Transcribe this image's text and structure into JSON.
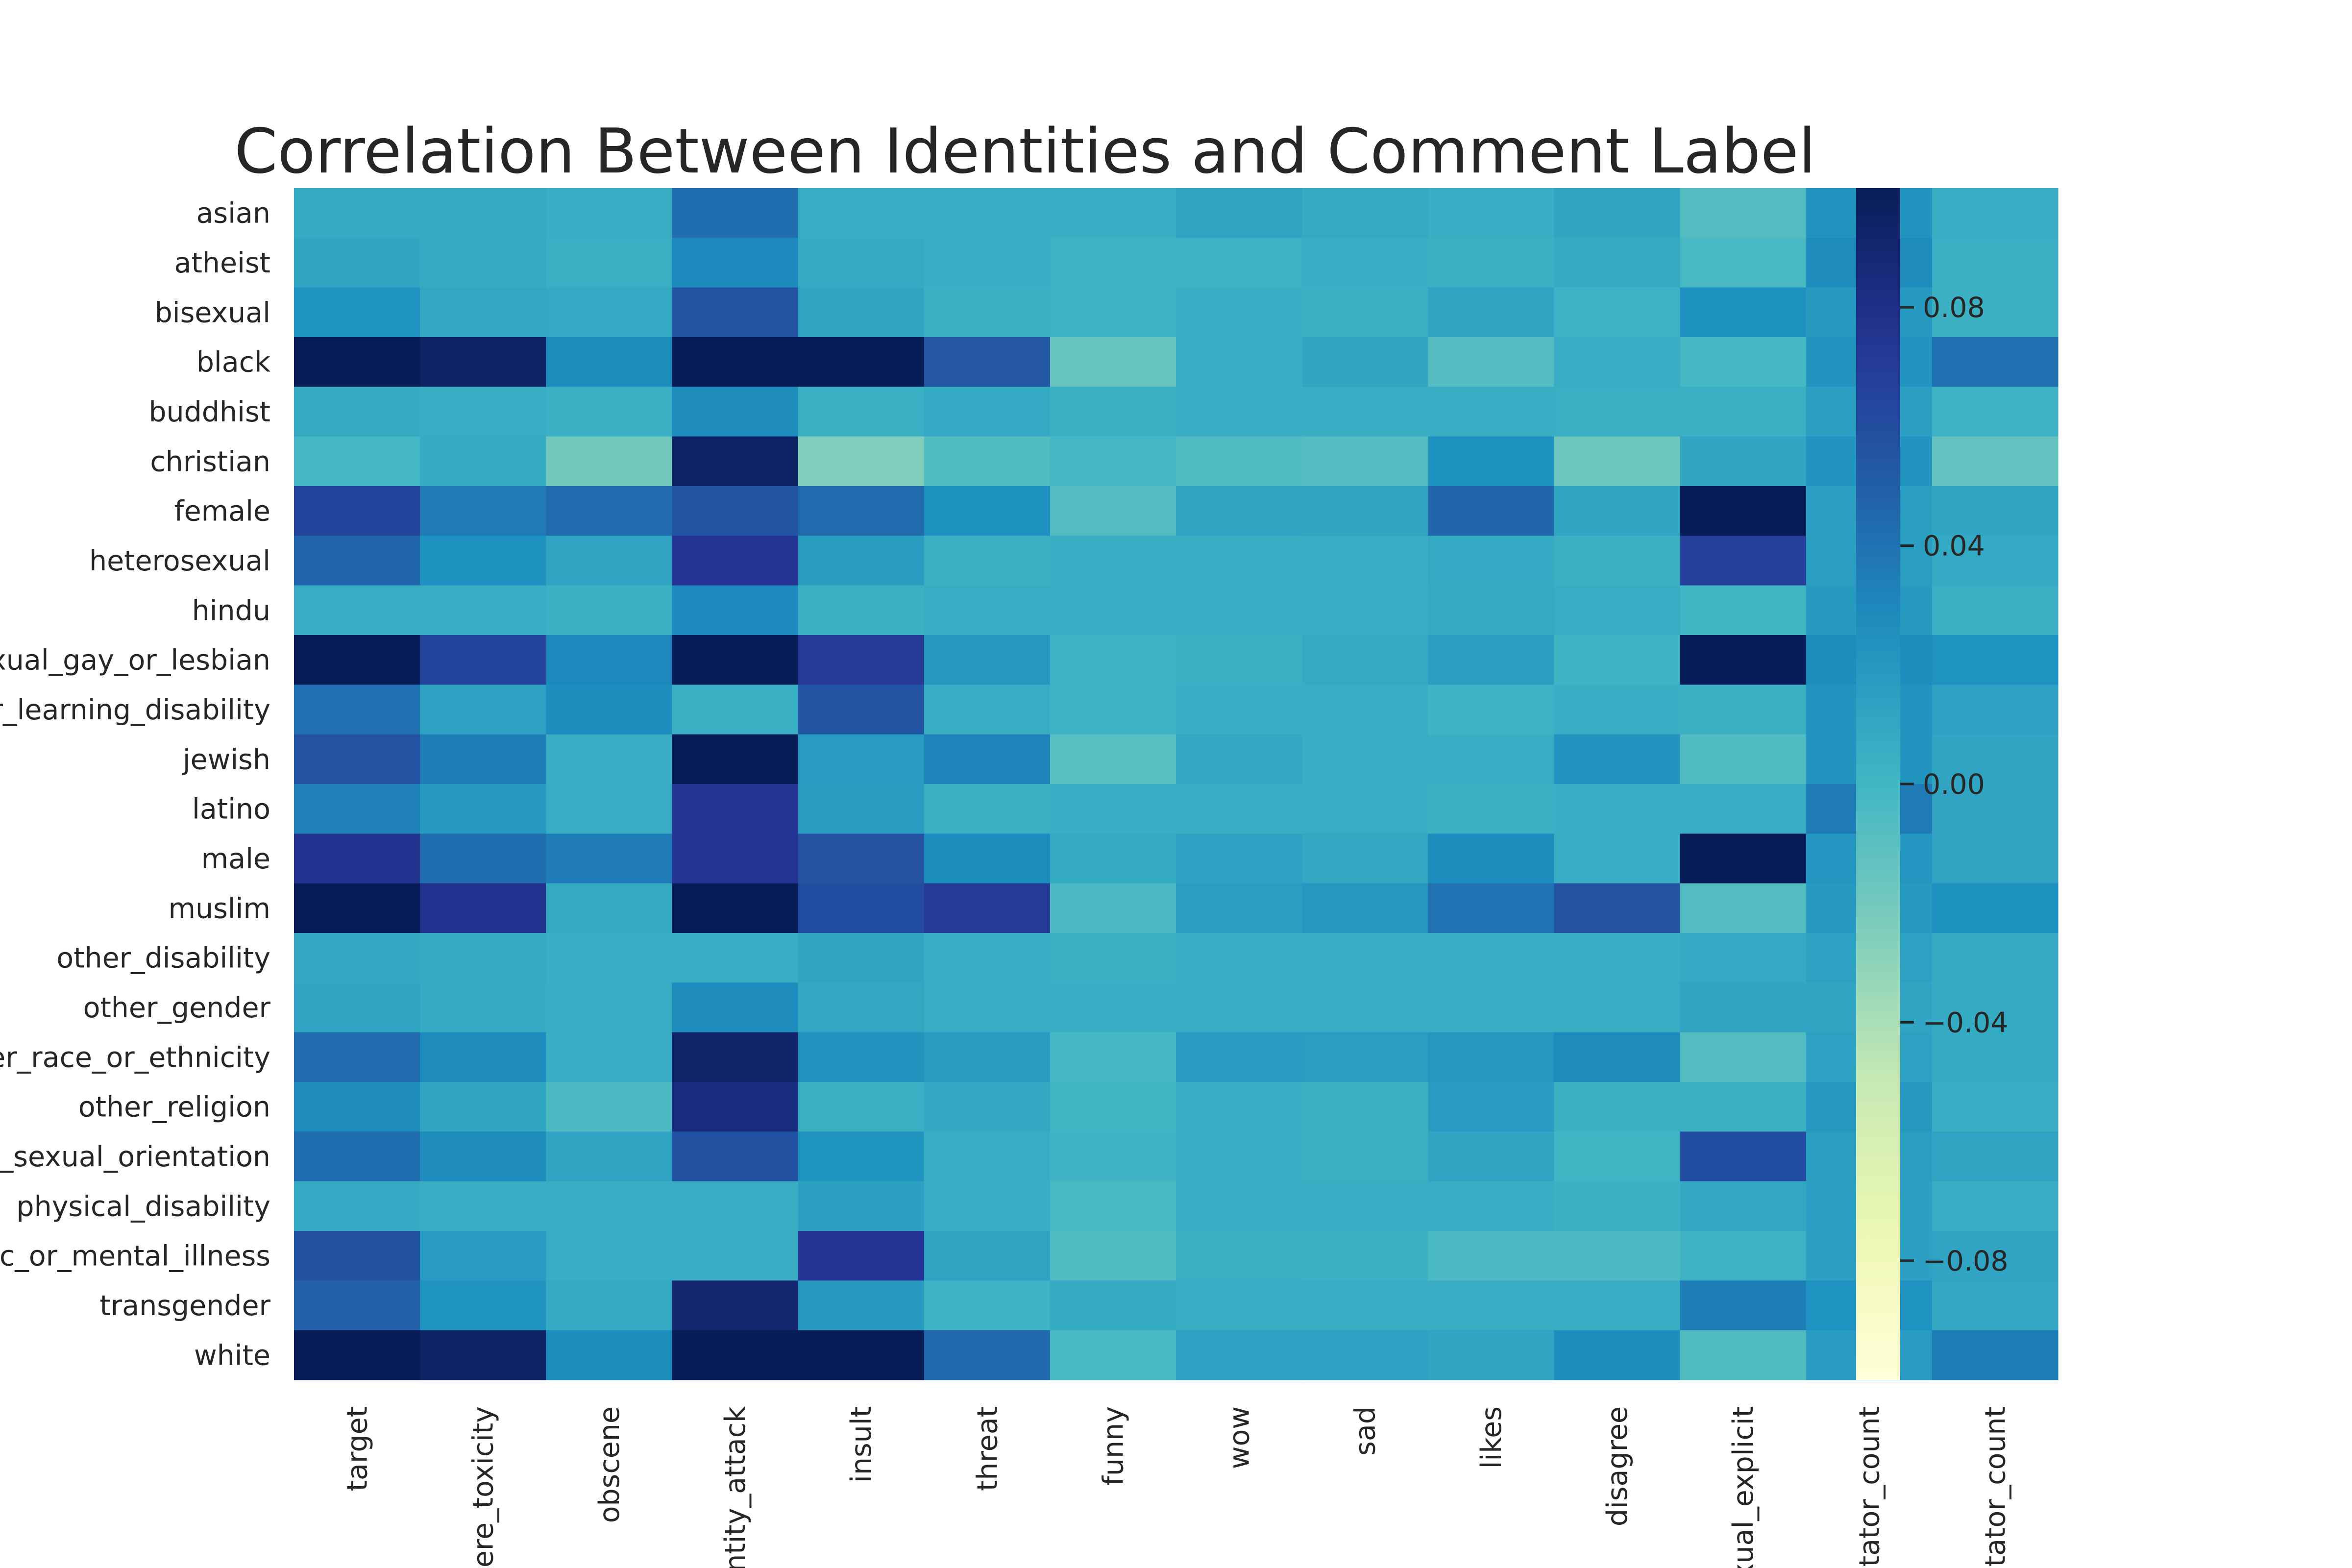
{
  "chart_data": {
    "type": "heatmap",
    "title": "Correlation Between Identities and Comment Label",
    "xlabel": "",
    "ylabel": "",
    "x_tick_labels": [
      "target",
      "vere_toxicity",
      "obscene",
      "entity_attack",
      "insult",
      "threat",
      "funny",
      "wow",
      "sad",
      "likes",
      "disagree",
      "exual_explicit",
      "otator_count",
      "otator_count"
    ],
    "y_tick_labels": [
      "asian",
      "atheist",
      "bisexual",
      "black",
      "buddhist",
      "christian",
      "female",
      "heterosexual",
      "hindu",
      "xual_gay_or_lesbian",
      "or_learning_disability",
      "jewish",
      "latino",
      "male",
      "muslim",
      "other_disability",
      "other_gender",
      "er_race_or_ethnicity",
      "other_religion",
      "r_sexual_orientation",
      "physical_disability",
      "ic_or_mental_illness",
      "transgender",
      "white"
    ],
    "values": [
      [
        0.008,
        0.008,
        0.006,
        0.042,
        0.007,
        0.006,
        0.006,
        0.013,
        0.008,
        0.006,
        0.011,
        -0.007,
        0.022,
        0.006
      ],
      [
        0.011,
        0.008,
        0.005,
        0.029,
        0.008,
        0.006,
        0.003,
        0.003,
        0.006,
        0.004,
        0.008,
        -0.003,
        0.028,
        0.005
      ],
      [
        0.024,
        0.01,
        0.009,
        0.056,
        0.012,
        0.004,
        0.003,
        0.006,
        0.004,
        0.012,
        0.003,
        0.025,
        0.019,
        0.004
      ],
      [
        0.1,
        0.095,
        0.026,
        0.1,
        0.1,
        0.055,
        -0.015,
        0.006,
        0.011,
        -0.008,
        0.006,
        -0.002,
        0.022,
        0.041
      ],
      [
        0.008,
        0.007,
        0.004,
        0.028,
        0.005,
        0.009,
        0.004,
        0.006,
        0.006,
        0.006,
        0.005,
        0.004,
        0.015,
        0.003
      ],
      [
        -0.002,
        0.008,
        -0.02,
        0.095,
        -0.025,
        -0.006,
        -0.001,
        -0.006,
        -0.008,
        0.025,
        -0.018,
        0.011,
        0.022,
        -0.013
      ],
      [
        0.066,
        0.036,
        0.043,
        0.056,
        0.044,
        0.025,
        -0.007,
        0.012,
        0.011,
        0.046,
        0.011,
        0.1,
        0.016,
        0.011
      ],
      [
        0.046,
        0.025,
        0.012,
        0.075,
        0.017,
        0.004,
        0.006,
        0.006,
        0.006,
        0.009,
        0.004,
        0.069,
        0.016,
        0.009
      ],
      [
        0.007,
        0.007,
        0.004,
        0.029,
        0.004,
        0.007,
        0.006,
        0.006,
        0.006,
        0.008,
        0.007,
        0.001,
        0.019,
        0.005
      ],
      [
        0.1,
        0.066,
        0.03,
        0.1,
        0.072,
        0.02,
        0.003,
        0.004,
        0.008,
        0.016,
        0.002,
        0.1,
        0.027,
        0.024
      ],
      [
        0.041,
        0.014,
        0.027,
        0.005,
        0.056,
        0.006,
        0.002,
        0.006,
        0.006,
        0.002,
        0.006,
        0.004,
        0.022,
        0.014
      ],
      [
        0.057,
        0.035,
        0.006,
        0.1,
        0.018,
        0.032,
        -0.009,
        0.01,
        0.007,
        0.006,
        0.022,
        -0.006,
        0.022,
        0.012
      ],
      [
        0.033,
        0.019,
        0.006,
        0.075,
        0.017,
        0.005,
        0.006,
        0.006,
        0.006,
        0.004,
        0.006,
        0.006,
        0.036,
        0.012
      ],
      [
        0.077,
        0.042,
        0.036,
        0.075,
        0.057,
        0.027,
        0.008,
        0.014,
        0.01,
        0.027,
        0.006,
        0.1,
        0.021,
        0.012
      ],
      [
        0.1,
        0.078,
        0.008,
        0.1,
        0.06,
        0.072,
        -0.004,
        0.016,
        0.02,
        0.04,
        0.057,
        -0.007,
        0.019,
        0.025
      ],
      [
        0.01,
        0.008,
        0.006,
        0.006,
        0.013,
        0.007,
        0.004,
        0.007,
        0.006,
        0.006,
        0.006,
        0.009,
        0.014,
        0.008
      ],
      [
        0.012,
        0.008,
        0.007,
        0.028,
        0.01,
        0.006,
        0.006,
        0.007,
        0.006,
        0.006,
        0.007,
        0.012,
        0.012,
        0.008
      ],
      [
        0.044,
        0.028,
        0.006,
        0.093,
        0.022,
        0.017,
        -0.001,
        0.018,
        0.016,
        0.02,
        0.028,
        -0.007,
        0.014,
        0.008
      ],
      [
        0.028,
        0.011,
        -0.004,
        0.085,
        0.005,
        0.01,
        0.001,
        0.006,
        0.004,
        0.018,
        0.004,
        0.004,
        0.02,
        0.006
      ],
      [
        0.042,
        0.028,
        0.012,
        0.058,
        0.023,
        0.006,
        0.002,
        0.006,
        0.004,
        0.012,
        0.001,
        0.06,
        0.016,
        0.012
      ],
      [
        0.009,
        0.006,
        0.006,
        0.006,
        0.015,
        0.006,
        -0.003,
        0.007,
        0.006,
        0.006,
        0.004,
        0.01,
        0.015,
        0.006
      ],
      [
        0.058,
        0.018,
        0.006,
        0.006,
        0.075,
        0.013,
        -0.006,
        0.005,
        0.004,
        -0.004,
        -0.004,
        0.003,
        0.015,
        0.012
      ],
      [
        0.049,
        0.023,
        0.008,
        0.09,
        0.019,
        0.002,
        0.008,
        0.007,
        0.007,
        0.007,
        0.006,
        0.035,
        0.024,
        0.01
      ],
      [
        0.1,
        0.095,
        0.026,
        0.1,
        0.1,
        0.045,
        -0.003,
        0.014,
        0.014,
        0.012,
        0.026,
        -0.006,
        0.018,
        0.035
      ]
    ],
    "vmin": -0.1,
    "vmax": 0.1,
    "colormap": "YlGnBu",
    "colorbar_ticks": [
      {
        "value": 0.08,
        "label": "0.08"
      },
      {
        "value": 0.04,
        "label": "0.04"
      },
      {
        "value": 0.0,
        "label": "0.00"
      },
      {
        "value": -0.04,
        "label": "−0.04"
      },
      {
        "value": -0.08,
        "label": "−0.08"
      }
    ],
    "colorbar_location": "right",
    "grid": false
  }
}
